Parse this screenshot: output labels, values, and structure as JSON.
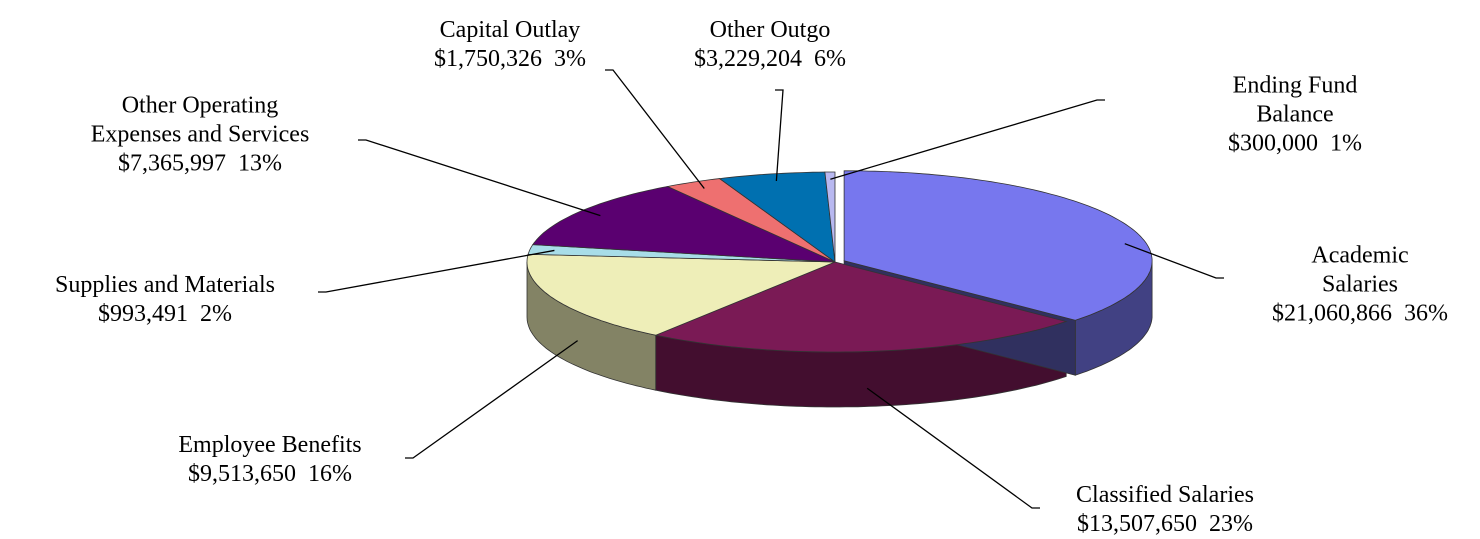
{
  "chart_data": {
    "type": "pie3d",
    "categories": [
      "Academic Salaries",
      "Classified Salaries",
      "Employee Benefits",
      "Supplies and Materials",
      "Other Operating\nExpenses and Services",
      "Capital Outlay",
      "Other Outgo",
      "Ending Fund Balance"
    ],
    "values": [
      21060866,
      13507650,
      9513650,
      993491,
      7365997,
      1750326,
      3229204,
      300000
    ],
    "value_labels": [
      "$21,060,866",
      "$13,507,650",
      "$9,513,650",
      "$993,491",
      "$7,365,997",
      "$1,750,326",
      "$3,229,204",
      "$300,000"
    ],
    "percent_labels": [
      "36%",
      "23%",
      "16%",
      "2%",
      "13%",
      "3%",
      "6%",
      "1%"
    ],
    "colors": [
      "#7777ee",
      "#7a1a55",
      "#eeeeb8",
      "#a8dde8",
      "#5a0070",
      "#ee7070",
      "#0070b0",
      "#b8b8f0"
    ]
  }
}
